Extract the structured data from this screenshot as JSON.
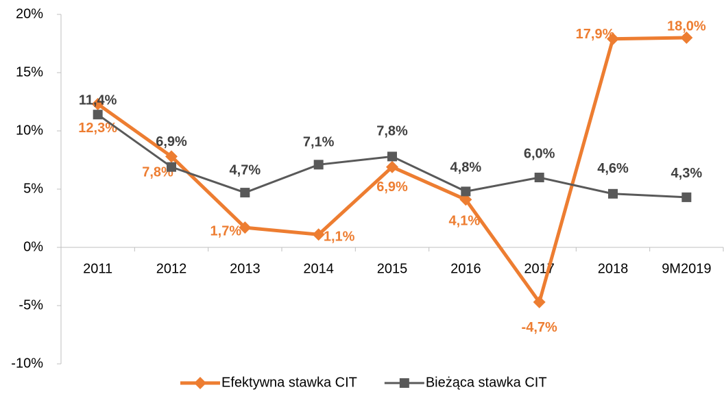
{
  "chart_data": {
    "type": "line",
    "categories": [
      "2011",
      "2012",
      "2013",
      "2014",
      "2015",
      "2016",
      "2017",
      "2018",
      "9M2019"
    ],
    "series": [
      {
        "name": "Efektywna stawka CIT",
        "color": "#ed7d31",
        "marker": "diamond",
        "values": [
          12.3,
          7.8,
          1.7,
          1.1,
          6.9,
          4.1,
          -4.7,
          17.9,
          18.0
        ],
        "value_labels": [
          "12,3%",
          "7,8%",
          "1,7%",
          "1,1%",
          "6,9%",
          "4,1%",
          "-4,7%",
          "17,9%",
          "18,0%"
        ]
      },
      {
        "name": "Bieżąca stawka CIT",
        "color": "#595959",
        "marker": "square",
        "values": [
          11.4,
          6.9,
          4.7,
          7.1,
          7.8,
          4.8,
          6.0,
          4.6,
          4.3
        ],
        "value_labels": [
          "11,4%",
          "6,9%",
          "4,7%",
          "7,1%",
          "7,8%",
          "4,8%",
          "6,0%",
          "4,6%",
          "4,3%"
        ]
      }
    ],
    "ylim": [
      -10,
      20
    ],
    "yticks": [
      {
        "value": -10,
        "label": "-10%"
      },
      {
        "value": -5,
        "label": "-5%"
      },
      {
        "value": 0,
        "label": "0%"
      },
      {
        "value": 5,
        "label": "5%"
      },
      {
        "value": 10,
        "label": "10%"
      },
      {
        "value": 15,
        "label": "15%"
      },
      {
        "value": 20,
        "label": "20%"
      }
    ],
    "legend": "bottom"
  }
}
